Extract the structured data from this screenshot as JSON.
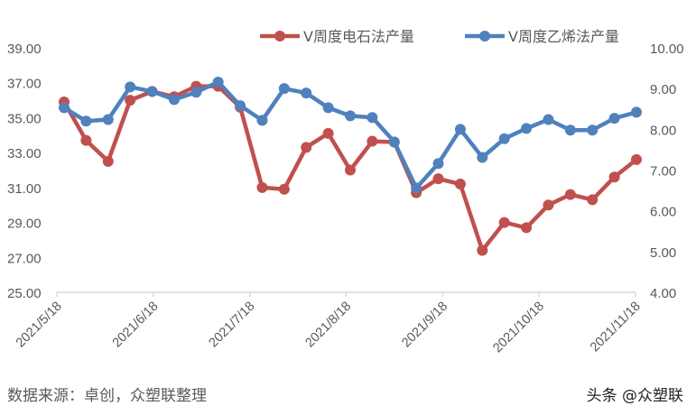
{
  "chart_data": {
    "type": "line",
    "title": "",
    "xlabel": "",
    "ylabel_left": "",
    "ylabel_right": "",
    "legend_position": "top-right",
    "grid": false,
    "x_tick_labels": [
      "2021/5/18",
      "2021/6/18",
      "2021/7/18",
      "2021/8/18",
      "2021/9/18",
      "2021/10/18",
      "2021/11/18"
    ],
    "left_axis": {
      "min": 25,
      "max": 39,
      "step": 2,
      "tick_labels": [
        "25.00",
        "27.00",
        "29.00",
        "31.00",
        "33.00",
        "35.00",
        "37.00",
        "39.00"
      ]
    },
    "right_axis": {
      "min": 4,
      "max": 10,
      "step": 1,
      "tick_labels": [
        "4.00",
        "5.00",
        "6.00",
        "7.00",
        "8.00",
        "9.00",
        "10.00"
      ]
    },
    "point_count": 27,
    "series": [
      {
        "name": "V周度电石法产量",
        "axis": "left",
        "color": "#C0504D",
        "values": [
          35.9,
          33.7,
          32.5,
          36.0,
          36.5,
          36.2,
          36.8,
          36.8,
          35.6,
          31.0,
          30.9,
          33.3,
          34.1,
          32.0,
          33.65,
          33.6,
          30.7,
          31.5,
          31.2,
          27.4,
          29.0,
          28.7,
          30.0,
          30.6,
          30.3,
          31.6,
          32.6
        ]
      },
      {
        "name": "V周度乙烯法产量",
        "axis": "right",
        "color": "#4F81BD",
        "values": [
          8.53,
          8.2,
          8.24,
          9.04,
          8.93,
          8.73,
          8.91,
          9.16,
          8.58,
          8.22,
          9.0,
          8.89,
          8.53,
          8.33,
          8.29,
          7.69,
          6.56,
          7.16,
          8.0,
          7.31,
          7.77,
          8.02,
          8.24,
          7.98,
          7.98,
          8.27,
          8.42
        ]
      }
    ]
  },
  "legend": {
    "items": [
      {
        "label": "V周度电石法产量",
        "color": "#C0504D"
      },
      {
        "label": "V周度乙烯法产量",
        "color": "#4F81BD"
      }
    ]
  },
  "footer": {
    "source": "数据来源：卓创，众塑联整理",
    "watermark": "头条 @众塑联"
  },
  "colors": {
    "axis": "#D9D9D9",
    "text": "#595959"
  }
}
